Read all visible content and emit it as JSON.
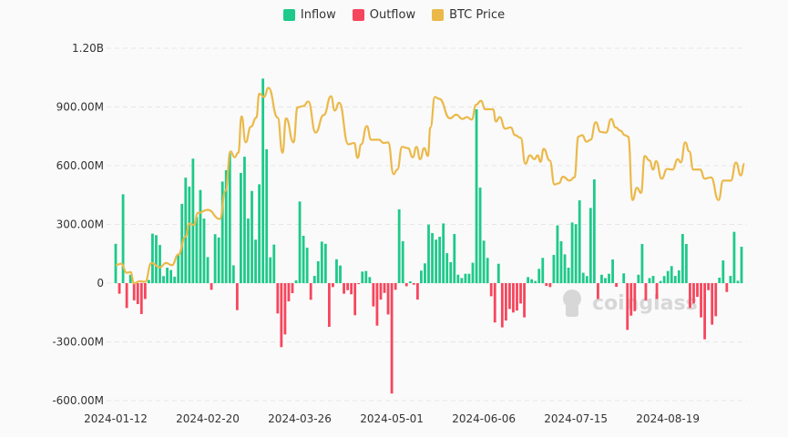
{
  "chart_data": {
    "type": "bar",
    "title": "",
    "legend": {
      "position": "top-center",
      "items": [
        {
          "key": "inflow",
          "label": "Inflow",
          "color": "#1ec98a"
        },
        {
          "key": "outflow",
          "label": "Outflow",
          "color": "#f6465d"
        },
        {
          "key": "price",
          "label": "BTC Price",
          "color": "#ebb94a"
        }
      ]
    },
    "y_axis": {
      "ticks": [
        {
          "value": 1200,
          "label": "1.20B"
        },
        {
          "value": 900,
          "label": "900.00M"
        },
        {
          "value": 600,
          "label": "600.00M"
        },
        {
          "value": 300,
          "label": "300.00M"
        },
        {
          "value": 0,
          "label": "0"
        },
        {
          "value": -300,
          "label": "-300.00M"
        },
        {
          "value": -600,
          "label": "-600.00M"
        }
      ],
      "unit": "USD millions",
      "ylim": [
        -600,
        1200
      ],
      "grid": true
    },
    "x_axis": {
      "ticks": [
        {
          "index": 0,
          "label": "2024-01-12"
        },
        {
          "index": 25,
          "label": "2024-02-20"
        },
        {
          "index": 50,
          "label": "2024-03-26"
        },
        {
          "index": 75,
          "label": "2024-05-01"
        },
        {
          "index": 100,
          "label": "2024-06-06"
        },
        {
          "index": 125,
          "label": "2024-07-15"
        },
        {
          "index": 150,
          "label": "2024-08-19"
        }
      ]
    },
    "flows": [
      201,
      -54,
      454,
      -127,
      43,
      -88,
      -107,
      -158,
      -81,
      16,
      253,
      245,
      195,
      36,
      79,
      67,
      33,
      144,
      405,
      539,
      493,
      636,
      338,
      476,
      330,
      133,
      -34,
      250,
      233,
      519,
      577,
      663,
      91,
      -138,
      563,
      646,
      330,
      471,
      222,
      505,
      1045,
      684,
      132,
      197,
      -155,
      -327,
      -262,
      -93,
      -51,
      14,
      417,
      242,
      181,
      -85,
      37,
      112,
      212,
      201,
      -223,
      -20,
      122,
      90,
      -54,
      -36,
      -57,
      -164,
      -5,
      59,
      62,
      31,
      -119,
      -217,
      -84,
      -50,
      -160,
      -564,
      -34,
      377,
      214,
      -16,
      9,
      -8,
      -84,
      64,
      101,
      299,
      256,
      222,
      237,
      305,
      153,
      107,
      251,
      43,
      26,
      48,
      48,
      104,
      888,
      488,
      217,
      129,
      -67,
      -201,
      99,
      -226,
      -191,
      -132,
      -150,
      -140,
      -104,
      -175,
      31,
      20,
      11,
      73,
      129,
      -14,
      -20,
      144,
      295,
      214,
      147,
      79,
      310,
      301,
      423,
      53,
      36,
      384,
      530,
      -81,
      43,
      26,
      48,
      121,
      -19,
      0,
      50,
      -239,
      -166,
      -143,
      43,
      200,
      -88,
      26,
      37,
      -81,
      11,
      36,
      62,
      87,
      37,
      65,
      251,
      200,
      -127,
      -104,
      -70,
      -175,
      -287,
      -36,
      -212,
      -169,
      28,
      116,
      -45,
      37,
      262,
      12,
      186
    ],
    "price_series": {
      "name": "BTC Price",
      "unit": "USD",
      "axis_visible": false,
      "ylim": [
        43000,
        79200
      ],
      "points": [
        [
          0,
          45770
        ],
        [
          1.5,
          46000
        ],
        [
          3,
          44600
        ],
        [
          4,
          44700
        ],
        [
          5,
          42970
        ],
        [
          6.5,
          43300
        ],
        [
          8,
          43200
        ],
        [
          9.7,
          46100
        ],
        [
          12,
          45450
        ],
        [
          13.7,
          46100
        ],
        [
          15.3,
          45770
        ],
        [
          17,
          47400
        ],
        [
          19,
          50200
        ],
        [
          20,
          52170
        ],
        [
          21.3,
          51980
        ],
        [
          22.3,
          53800
        ],
        [
          25,
          54300
        ],
        [
          28.3,
          52900
        ],
        [
          29.8,
          57200
        ],
        [
          31.2,
          63300
        ],
        [
          32.3,
          62400
        ],
        [
          33.3,
          63100
        ],
        [
          34.2,
          68700
        ],
        [
          35.3,
          64700
        ],
        [
          36.7,
          67100
        ],
        [
          38.2,
          68500
        ],
        [
          39,
          72200
        ],
        [
          40.3,
          71700
        ],
        [
          41.5,
          73100
        ],
        [
          44,
          68500
        ],
        [
          45.3,
          63100
        ],
        [
          46.3,
          68400
        ],
        [
          48.3,
          64700
        ],
        [
          49.4,
          70100
        ],
        [
          51,
          70300
        ],
        [
          52.3,
          71000
        ],
        [
          54.3,
          66200
        ],
        [
          56.5,
          68900
        ],
        [
          58.5,
          71800
        ],
        [
          59.5,
          69600
        ],
        [
          60.7,
          70800
        ],
        [
          63.2,
          64400
        ],
        [
          64.8,
          64600
        ],
        [
          65.7,
          62300
        ],
        [
          66.7,
          64400
        ],
        [
          68.2,
          67200
        ],
        [
          69.4,
          65100
        ],
        [
          71.5,
          65100
        ],
        [
          72.8,
          64600
        ],
        [
          74,
          64700
        ],
        [
          75.5,
          59800
        ],
        [
          76.5,
          60500
        ],
        [
          77.8,
          64000
        ],
        [
          79.4,
          63800
        ],
        [
          80.7,
          62400
        ],
        [
          81.7,
          64000
        ],
        [
          82.7,
          62100
        ],
        [
          83.8,
          63800
        ],
        [
          84.8,
          62600
        ],
        [
          85.5,
          67000
        ],
        [
          86.7,
          71700
        ],
        [
          87.9,
          71400
        ],
        [
          90.8,
          68400
        ],
        [
          92.5,
          68960
        ],
        [
          94.2,
          68300
        ],
        [
          95.4,
          68600
        ],
        [
          96.7,
          68200
        ],
        [
          97.9,
          70500
        ],
        [
          99.2,
          71100
        ],
        [
          100.4,
          69800
        ],
        [
          102.5,
          69800
        ],
        [
          103.3,
          67900
        ],
        [
          104.3,
          68600
        ],
        [
          105.8,
          66800
        ],
        [
          107.3,
          67000
        ],
        [
          108.5,
          65800
        ],
        [
          110,
          65400
        ],
        [
          111.3,
          61400
        ],
        [
          112.5,
          62700
        ],
        [
          113.75,
          62100
        ],
        [
          114.6,
          62700
        ],
        [
          115.4,
          61700
        ],
        [
          116.25,
          63700
        ],
        [
          117.9,
          61900
        ],
        [
          119.2,
          58200
        ],
        [
          120.4,
          58400
        ],
        [
          121.5,
          59400
        ],
        [
          123.3,
          58800
        ],
        [
          124.6,
          59300
        ],
        [
          125.7,
          65600
        ],
        [
          126.7,
          65800
        ],
        [
          127.9,
          64800
        ],
        [
          129,
          65100
        ],
        [
          130.4,
          67800
        ],
        [
          131.7,
          66300
        ],
        [
          133.2,
          66200
        ],
        [
          134.6,
          68300
        ],
        [
          135.8,
          67000
        ],
        [
          137.1,
          66500
        ],
        [
          138.3,
          65800
        ],
        [
          139.2,
          65600
        ],
        [
          140.4,
          55800
        ],
        [
          141.6,
          57700
        ],
        [
          142.7,
          56900
        ],
        [
          143.7,
          62600
        ],
        [
          145,
          61900
        ],
        [
          146,
          60500
        ],
        [
          146.8,
          61800
        ],
        [
          148.3,
          59100
        ],
        [
          149.8,
          60600
        ],
        [
          151.25,
          60500
        ],
        [
          152.7,
          62100
        ],
        [
          153.5,
          61600
        ],
        [
          154.7,
          64700
        ],
        [
          155.8,
          63300
        ],
        [
          156.9,
          60500
        ],
        [
          158.75,
          60500
        ],
        [
          160,
          59100
        ],
        [
          161.7,
          59300
        ],
        [
          163.75,
          55800
        ],
        [
          165,
          58800
        ],
        [
          167.1,
          58800
        ],
        [
          168.5,
          61600
        ],
        [
          169.8,
          59600
        ],
        [
          170.8,
          61400
        ]
      ]
    },
    "watermark": "coinglass"
  }
}
